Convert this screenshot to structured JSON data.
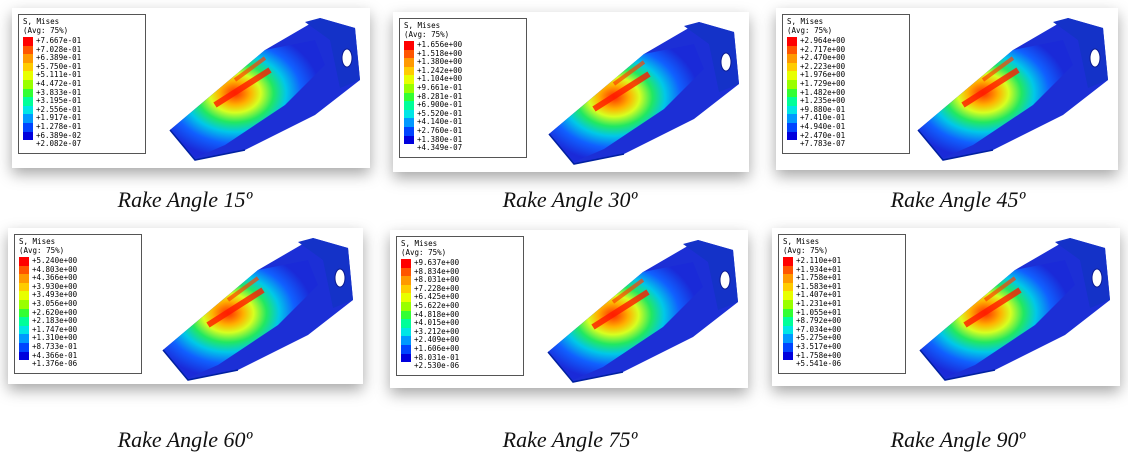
{
  "panels": [
    {
      "legend_title": "S, Mises",
      "legend_avg": "(Avg: 75%)",
      "legend_values": [
        "+7.667e-01",
        "+7.028e-01",
        "+6.389e-01",
        "+5.750e-01",
        "+5.111e-01",
        "+4.472e-01",
        "+3.833e-01",
        "+3.195e-01",
        "+2.556e-01",
        "+1.917e-01",
        "+1.278e-01",
        "+6.389e-02",
        "+2.082e-07"
      ],
      "caption": "Rake Angle 15º"
    },
    {
      "legend_title": "S, Mises",
      "legend_avg": "(Avg: 75%)",
      "legend_values": [
        "+1.656e+00",
        "+1.518e+00",
        "+1.380e+00",
        "+1.242e+00",
        "+1.104e+00",
        "+9.661e-01",
        "+8.281e-01",
        "+6.900e-01",
        "+5.520e-01",
        "+4.140e-01",
        "+2.760e-01",
        "+1.380e-01",
        "+4.349e-07"
      ],
      "caption": "Rake Angle 30º"
    },
    {
      "legend_title": "S, Mises",
      "legend_avg": "(Avg: 75%)",
      "legend_values": [
        "+2.964e+00",
        "+2.717e+00",
        "+2.470e+00",
        "+2.223e+00",
        "+1.976e+00",
        "+1.729e+00",
        "+1.482e+00",
        "+1.235e+00",
        "+9.880e-01",
        "+7.410e-01",
        "+4.940e-01",
        "+2.470e-01",
        "+7.783e-07"
      ],
      "caption": "Rake Angle 45º"
    },
    {
      "legend_title": "S, Mises",
      "legend_avg": "(Avg: 75%)",
      "legend_values": [
        "+5.240e+00",
        "+4.803e+00",
        "+4.366e+00",
        "+3.930e+00",
        "+3.493e+00",
        "+3.056e+00",
        "+2.620e+00",
        "+2.183e+00",
        "+1.747e+00",
        "+1.310e+00",
        "+8.733e-01",
        "+4.366e-01",
        "+1.376e-06"
      ],
      "caption": "Rake Angle 60º"
    },
    {
      "legend_title": "S, Mises",
      "legend_avg": "(Avg: 75%)",
      "legend_values": [
        "+9.637e+00",
        "+8.834e+00",
        "+8.031e+00",
        "+7.228e+00",
        "+6.425e+00",
        "+5.622e+00",
        "+4.818e+00",
        "+4.015e+00",
        "+3.212e+00",
        "+2.409e+00",
        "+1.606e+00",
        "+8.031e-01",
        "+2.530e-06"
      ],
      "caption": "Rake Angle 75º"
    },
    {
      "legend_title": "S, Mises",
      "legend_avg": "(Avg: 75%)",
      "legend_values": [
        "+2.110e+01",
        "+1.934e+01",
        "+1.758e+01",
        "+1.583e+01",
        "+1.407e+01",
        "+1.231e+01",
        "+1.055e+01",
        "+8.792e+00",
        "+7.034e+00",
        "+5.275e+00",
        "+3.517e+00",
        "+1.758e+00",
        "+5.541e-06"
      ],
      "caption": "Rake Angle 90º"
    }
  ]
}
